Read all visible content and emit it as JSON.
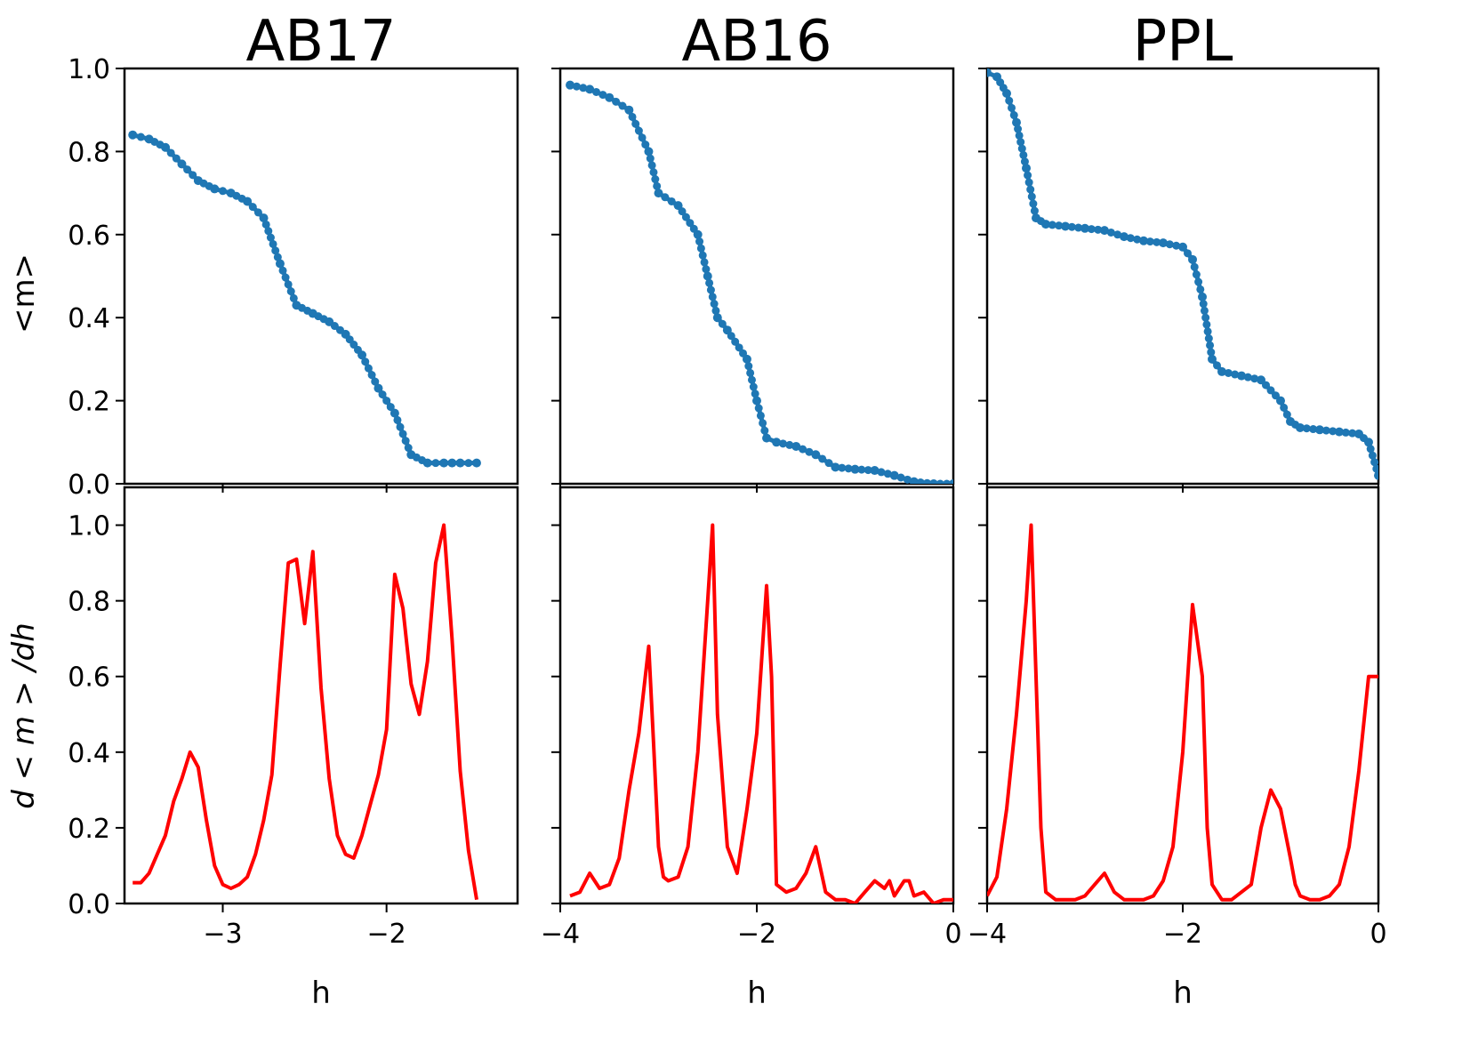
{
  "figure": {
    "ylabel_top": "<m>",
    "ylabel_bottom": "d < m > /dh",
    "xlabel": "h"
  },
  "chart_data": [
    {
      "title": "AB17",
      "panel": "magnetization",
      "type": "line",
      "marker": "circle",
      "color": "#1f77b4",
      "xlabel": "h",
      "ylabel": "<m>",
      "xlim": [
        -3.6,
        -1.2
      ],
      "ylim": [
        0,
        1.0
      ],
      "xticks": [
        -3,
        -2
      ],
      "yticks": [
        0.0,
        0.2,
        0.4,
        0.6,
        0.8,
        1.0
      ],
      "x": [
        -3.55,
        -3.45,
        -3.35,
        -3.25,
        -3.15,
        -3.05,
        -2.95,
        -2.85,
        -2.75,
        -2.65,
        -2.55,
        -2.45,
        -2.35,
        -2.25,
        -2.15,
        -2.05,
        -1.95,
        -1.85,
        -1.75,
        -1.65,
        -1.6,
        -1.55,
        -1.45
      ],
      "y": [
        0.84,
        0.83,
        0.81,
        0.77,
        0.73,
        0.71,
        0.7,
        0.68,
        0.64,
        0.53,
        0.43,
        0.41,
        0.39,
        0.36,
        0.31,
        0.23,
        0.17,
        0.07,
        0.05,
        0.05,
        0.05,
        0.05,
        0.05
      ]
    },
    {
      "title": "AB16",
      "panel": "magnetization",
      "type": "line",
      "marker": "circle",
      "color": "#1f77b4",
      "xlabel": "h",
      "ylabel": "<m>",
      "xlim": [
        -4,
        0
      ],
      "ylim": [
        0,
        1.0
      ],
      "xticks": [
        -4,
        -2,
        0
      ],
      "yticks": [
        0.0,
        0.2,
        0.4,
        0.6,
        0.8,
        1.0
      ],
      "x": [
        -3.9,
        -3.7,
        -3.5,
        -3.3,
        -3.1,
        -3.0,
        -2.8,
        -2.6,
        -2.5,
        -2.4,
        -2.3,
        -2.1,
        -2.0,
        -1.9,
        -1.8,
        -1.6,
        -1.4,
        -1.2,
        -1.0,
        -0.8,
        -0.6,
        -0.4,
        -0.2,
        0
      ],
      "y": [
        0.96,
        0.95,
        0.93,
        0.9,
        0.8,
        0.7,
        0.67,
        0.6,
        0.5,
        0.4,
        0.37,
        0.3,
        0.2,
        0.11,
        0.1,
        0.09,
        0.07,
        0.04,
        0.035,
        0.032,
        0.02,
        0.005,
        0.0,
        0.0
      ]
    },
    {
      "title": "PPL",
      "panel": "magnetization",
      "type": "line",
      "marker": "circle",
      "color": "#1f77b4",
      "xlabel": "h",
      "ylabel": "<m>",
      "xlim": [
        -4,
        0
      ],
      "ylim": [
        0,
        1.0
      ],
      "xticks": [
        -4,
        -2,
        0
      ],
      "yticks": [
        0.0,
        0.2,
        0.4,
        0.6,
        0.8,
        1.0
      ],
      "x": [
        -4.0,
        -3.9,
        -3.8,
        -3.7,
        -3.6,
        -3.5,
        -3.4,
        -3.2,
        -3.0,
        -2.8,
        -2.6,
        -2.4,
        -2.2,
        -2.0,
        -1.9,
        -1.8,
        -1.7,
        -1.6,
        -1.4,
        -1.2,
        -1.0,
        -0.9,
        -0.8,
        -0.6,
        -0.4,
        -0.2,
        -0.1,
        0
      ],
      "y": [
        0.99,
        0.98,
        0.94,
        0.87,
        0.76,
        0.64,
        0.625,
        0.62,
        0.615,
        0.61,
        0.595,
        0.585,
        0.58,
        0.57,
        0.54,
        0.45,
        0.3,
        0.27,
        0.26,
        0.25,
        0.2,
        0.15,
        0.135,
        0.13,
        0.125,
        0.12,
        0.1,
        0.02
      ]
    },
    {
      "title": "AB17",
      "panel": "derivative",
      "type": "line",
      "color": "#ff0000",
      "xlabel": "h",
      "ylabel": "d < m > /dh",
      "xlim": [
        -3.6,
        -1.2
      ],
      "ylim": [
        0,
        1.1
      ],
      "xticks": [
        -3,
        -2
      ],
      "yticks": [
        0.0,
        0.2,
        0.4,
        0.6,
        0.8,
        1.0
      ],
      "x": [
        -3.55,
        -3.5,
        -3.45,
        -3.4,
        -3.35,
        -3.3,
        -3.25,
        -3.2,
        -3.15,
        -3.1,
        -3.05,
        -3.0,
        -2.95,
        -2.9,
        -2.85,
        -2.8,
        -2.75,
        -2.7,
        -2.65,
        -2.6,
        -2.55,
        -2.5,
        -2.45,
        -2.4,
        -2.35,
        -2.3,
        -2.25,
        -2.2,
        -2.15,
        -2.1,
        -2.05,
        -2.0,
        -1.95,
        -1.9,
        -1.85,
        -1.8,
        -1.75,
        -1.7,
        -1.65,
        -1.6,
        -1.55,
        -1.5,
        -1.45
      ],
      "y": [
        0.055,
        0.055,
        0.08,
        0.13,
        0.18,
        0.27,
        0.33,
        0.4,
        0.36,
        0.22,
        0.1,
        0.05,
        0.04,
        0.05,
        0.07,
        0.13,
        0.22,
        0.34,
        0.63,
        0.9,
        0.91,
        0.74,
        0.93,
        0.57,
        0.33,
        0.18,
        0.13,
        0.12,
        0.18,
        0.26,
        0.34,
        0.46,
        0.87,
        0.78,
        0.58,
        0.5,
        0.64,
        0.9,
        1.0,
        0.7,
        0.35,
        0.14,
        0.01
      ]
    },
    {
      "title": "AB16",
      "panel": "derivative",
      "type": "line",
      "color": "#ff0000",
      "xlabel": "h",
      "ylabel": "d < m > /dh",
      "xlim": [
        -4,
        0
      ],
      "ylim": [
        0,
        1.1
      ],
      "xticks": [
        -4,
        -2,
        0
      ],
      "yticks": [
        0.0,
        0.2,
        0.4,
        0.6,
        0.8,
        1.0
      ],
      "x": [
        -3.9,
        -3.8,
        -3.7,
        -3.6,
        -3.5,
        -3.4,
        -3.3,
        -3.2,
        -3.1,
        -3.05,
        -3.0,
        -2.95,
        -2.9,
        -2.8,
        -2.7,
        -2.6,
        -2.5,
        -2.45,
        -2.4,
        -2.3,
        -2.2,
        -2.1,
        -2.0,
        -1.9,
        -1.85,
        -1.8,
        -1.7,
        -1.6,
        -1.5,
        -1.4,
        -1.3,
        -1.2,
        -1.1,
        -1.0,
        -0.9,
        -0.8,
        -0.7,
        -0.65,
        -0.6,
        -0.5,
        -0.45,
        -0.4,
        -0.3,
        -0.2,
        -0.1,
        0
      ],
      "y": [
        0.02,
        0.03,
        0.08,
        0.04,
        0.05,
        0.12,
        0.3,
        0.45,
        0.68,
        0.42,
        0.15,
        0.07,
        0.06,
        0.07,
        0.15,
        0.4,
        0.8,
        1.0,
        0.5,
        0.15,
        0.08,
        0.25,
        0.45,
        0.84,
        0.6,
        0.05,
        0.03,
        0.04,
        0.08,
        0.15,
        0.03,
        0.01,
        0.01,
        0.0,
        0.03,
        0.06,
        0.04,
        0.06,
        0.02,
        0.06,
        0.06,
        0.02,
        0.03,
        0.0,
        0.01,
        0.01
      ]
    },
    {
      "title": "PPL",
      "panel": "derivative",
      "type": "line",
      "color": "#ff0000",
      "xlabel": "h",
      "ylabel": "d < m > /dh",
      "xlim": [
        -4,
        0
      ],
      "ylim": [
        0,
        1.1
      ],
      "xticks": [
        -4,
        -2,
        0
      ],
      "yticks": [
        0.0,
        0.2,
        0.4,
        0.6,
        0.8,
        1.0
      ],
      "x": [
        -4.0,
        -3.9,
        -3.8,
        -3.7,
        -3.6,
        -3.55,
        -3.5,
        -3.45,
        -3.4,
        -3.3,
        -3.2,
        -3.1,
        -3.0,
        -2.9,
        -2.8,
        -2.7,
        -2.6,
        -2.5,
        -2.4,
        -2.3,
        -2.2,
        -2.1,
        -2.0,
        -1.9,
        -1.8,
        -1.75,
        -1.7,
        -1.6,
        -1.5,
        -1.4,
        -1.3,
        -1.2,
        -1.1,
        -1.0,
        -0.9,
        -0.85,
        -0.8,
        -0.7,
        -0.6,
        -0.5,
        -0.4,
        -0.3,
        -0.2,
        -0.1,
        0
      ],
      "y": [
        0.02,
        0.07,
        0.25,
        0.5,
        0.8,
        1.0,
        0.6,
        0.2,
        0.03,
        0.01,
        0.01,
        0.01,
        0.02,
        0.05,
        0.08,
        0.03,
        0.01,
        0.01,
        0.01,
        0.02,
        0.06,
        0.15,
        0.4,
        0.79,
        0.6,
        0.2,
        0.05,
        0.01,
        0.01,
        0.03,
        0.05,
        0.2,
        0.3,
        0.25,
        0.12,
        0.05,
        0.02,
        0.01,
        0.01,
        0.02,
        0.05,
        0.15,
        0.35,
        0.6,
        0.6
      ]
    }
  ]
}
